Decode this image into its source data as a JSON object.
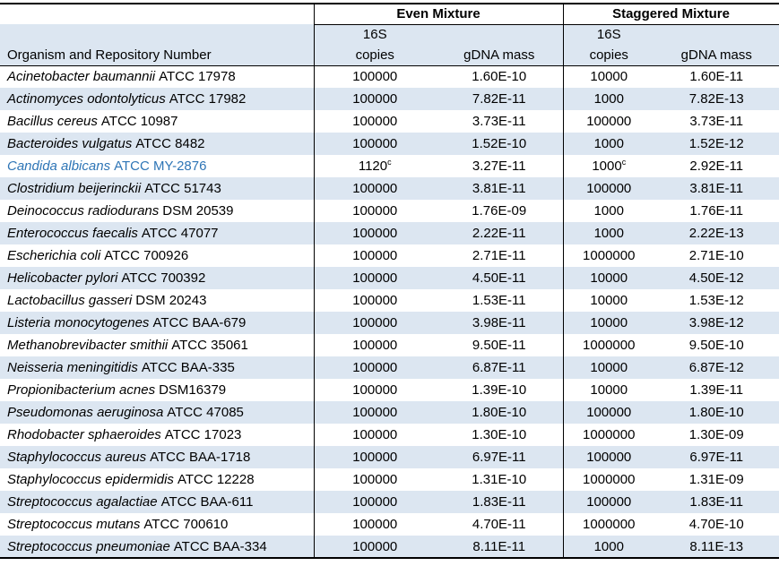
{
  "document": {
    "header": {
      "even_group_label": "Even Mixture",
      "staggered_group_label": "Staggered Mixture",
      "subcolumn_16s": "16S",
      "organism_column": "Organism and Repository Number",
      "copies_column": "copies",
      "gdna_column": "gDNA mass"
    },
    "colors": {
      "band_blue": "#DCE6F1",
      "highlight_blue": "#2E75B6",
      "border_black": "#000000"
    },
    "footnote_marker": "c",
    "rows": [
      {
        "organism": "Acinetobacter baumannii",
        "repo": "ATCC 17978",
        "even_copies": "100000",
        "even_gdna": "1.60E-10",
        "stag_copies": "10000",
        "stag_gdna": "1.60E-11"
      },
      {
        "organism": "Actinomyces odontolyticus",
        "repo": "ATCC 17982",
        "even_copies": "100000",
        "even_gdna": "7.82E-11",
        "stag_copies": "1000",
        "stag_gdna": "7.82E-13"
      },
      {
        "organism": "Bacillus cereus",
        "repo": "ATCC 10987",
        "even_copies": "100000",
        "even_gdna": "3.73E-11",
        "stag_copies": "100000",
        "stag_gdna": "3.73E-11"
      },
      {
        "organism": "Bacteroides vulgatus",
        "repo": "ATCC 8482",
        "even_copies": "100000",
        "even_gdna": "1.52E-10",
        "stag_copies": "1000",
        "stag_gdna": "1.52E-12"
      },
      {
        "organism": "Candida albicans",
        "repo": "ATCC MY-2876",
        "even_copies": "1120",
        "even_sup": "c",
        "even_gdna": "3.27E-11",
        "stag_copies": "1000",
        "stag_sup": "c",
        "stag_gdna": "2.92E-11",
        "highlight": true
      },
      {
        "organism": "Clostridium beijerinckii",
        "repo": "ATCC 51743",
        "even_copies": "100000",
        "even_gdna": "3.81E-11",
        "stag_copies": "100000",
        "stag_gdna": "3.81E-11"
      },
      {
        "organism": "Deinococcus radiodurans",
        "repo": "DSM 20539",
        "even_copies": "100000",
        "even_gdna": "1.76E-09",
        "stag_copies": "1000",
        "stag_gdna": "1.76E-11"
      },
      {
        "organism": "Enterococcus faecalis",
        "repo": "ATCC 47077",
        "even_copies": "100000",
        "even_gdna": "2.22E-11",
        "stag_copies": "1000",
        "stag_gdna": "2.22E-13"
      },
      {
        "organism": "Escherichia coli",
        "repo": "ATCC 700926",
        "even_copies": "100000",
        "even_gdna": "2.71E-11",
        "stag_copies": "1000000",
        "stag_gdna": "2.71E-10"
      },
      {
        "organism": "Helicobacter pylori",
        "repo": "ATCC 700392",
        "even_copies": "100000",
        "even_gdna": "4.50E-11",
        "stag_copies": "10000",
        "stag_gdna": "4.50E-12"
      },
      {
        "organism": "Lactobacillus gasseri",
        "repo": "DSM 20243",
        "even_copies": "100000",
        "even_gdna": "1.53E-11",
        "stag_copies": "10000",
        "stag_gdna": "1.53E-12"
      },
      {
        "organism": "Listeria monocytogenes",
        "repo": "ATCC BAA-679",
        "even_copies": "100000",
        "even_gdna": "3.98E-11",
        "stag_copies": "10000",
        "stag_gdna": "3.98E-12"
      },
      {
        "organism": "Methanobrevibacter smithii",
        "repo": "ATCC 35061",
        "even_copies": "100000",
        "even_gdna": "9.50E-11",
        "stag_copies": "1000000",
        "stag_gdna": "9.50E-10"
      },
      {
        "organism": "Neisseria meningitidis",
        "repo": "ATCC BAA-335",
        "even_copies": "100000",
        "even_gdna": "6.87E-11",
        "stag_copies": "10000",
        "stag_gdna": "6.87E-12"
      },
      {
        "organism": "Propionibacterium acnes",
        "repo": "DSM16379",
        "even_copies": "100000",
        "even_gdna": "1.39E-10",
        "stag_copies": "10000",
        "stag_gdna": "1.39E-11"
      },
      {
        "organism": "Pseudomonas aeruginosa",
        "repo": "ATCC 47085",
        "even_copies": "100000",
        "even_gdna": "1.80E-10",
        "stag_copies": "100000",
        "stag_gdna": "1.80E-10"
      },
      {
        "organism": "Rhodobacter sphaeroides",
        "repo": "ATCC 17023",
        "even_copies": "100000",
        "even_gdna": "1.30E-10",
        "stag_copies": "1000000",
        "stag_gdna": "1.30E-09"
      },
      {
        "organism": "Staphylococcus aureus",
        "repo": "ATCC BAA-1718",
        "even_copies": "100000",
        "even_gdna": "6.97E-11",
        "stag_copies": "100000",
        "stag_gdna": "6.97E-11"
      },
      {
        "organism": "Staphylococcus epidermidis",
        "repo": "ATCC 12228",
        "even_copies": "100000",
        "even_gdna": "1.31E-10",
        "stag_copies": "1000000",
        "stag_gdna": "1.31E-09"
      },
      {
        "organism": "Streptococcus agalactiae",
        "repo": "ATCC BAA-611",
        "even_copies": "100000",
        "even_gdna": "1.83E-11",
        "stag_copies": "100000",
        "stag_gdna": "1.83E-11"
      },
      {
        "organism": "Streptococcus mutans",
        "repo": "ATCC 700610",
        "even_copies": "100000",
        "even_gdna": "4.70E-11",
        "stag_copies": "1000000",
        "stag_gdna": "4.70E-10"
      },
      {
        "organism": "Streptococcus pneumoniae",
        "repo": "ATCC BAA-334",
        "even_copies": "100000",
        "even_gdna": "8.11E-11",
        "stag_copies": "1000",
        "stag_gdna": "8.11E-13"
      }
    ]
  }
}
